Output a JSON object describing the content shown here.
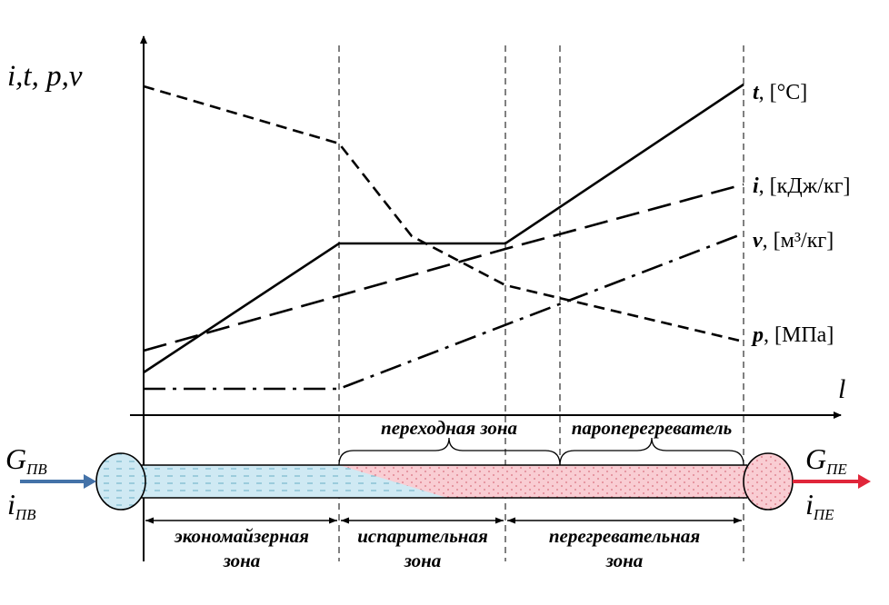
{
  "y_axis_label": "i,t, p,v",
  "x_axis_label": "l",
  "curves": [
    {
      "symbol": "t",
      "unit": "[°C]"
    },
    {
      "symbol": "i",
      "unit": "[кДж/кг]"
    },
    {
      "symbol": "v",
      "unit": "[м³/кг]"
    },
    {
      "symbol": "p",
      "unit": "[МПа]"
    }
  ],
  "top_zones": [
    "переходная зона",
    "пароперегреватель"
  ],
  "bottom_zones": [
    {
      "line1": "экономайзерная",
      "line2": "зона"
    },
    {
      "line1": "испарительная",
      "line2": "зона"
    },
    {
      "line1": "перегревательная",
      "line2": "зона"
    }
  ],
  "inlet": {
    "flow": "G",
    "flow_sub": "ПВ",
    "enthalpy": "i",
    "enthalpy_sub": "ПВ"
  },
  "outlet": {
    "flow": "G",
    "flow_sub": "ПЕ",
    "enthalpy": "i",
    "enthalpy_sub": "ПЕ"
  },
  "colors": {
    "water": "#cfe9f3",
    "steam": "#f9cdd3",
    "inlet_arrow": "#4472a8",
    "outlet_arrow": "#e0263a"
  }
}
